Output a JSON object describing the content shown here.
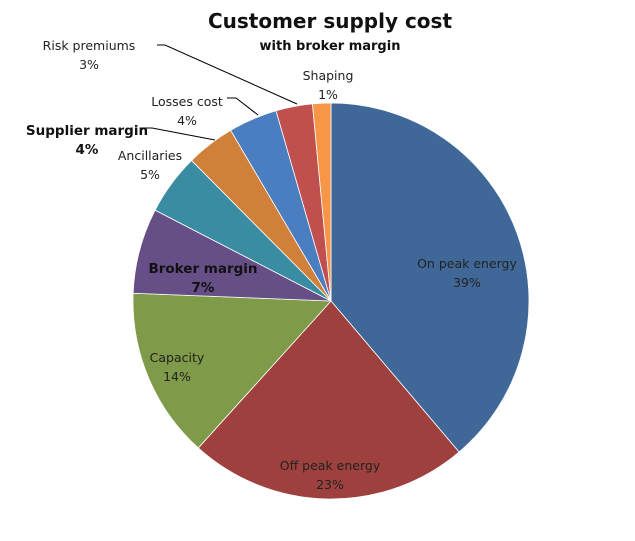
{
  "chart_data": {
    "type": "pie",
    "title": "Customer supply cost",
    "subtitle": "with broker margin",
    "start": "top",
    "direction": "clockwise",
    "slices": [
      {
        "label": "On peak energy",
        "value": 39,
        "pct": "39%",
        "color": "#3F6899",
        "bold": false
      },
      {
        "label": "Off peak energy",
        "value": 23,
        "pct": "23%",
        "color": "#9E413E",
        "bold": false
      },
      {
        "label": "Capacity",
        "value": 14,
        "pct": "14%",
        "color": "#7F9A48",
        "bold": false
      },
      {
        "label": "Broker margin",
        "value": 7,
        "pct": "7%",
        "color": "#664F86",
        "bold": true
      },
      {
        "label": "Ancillaries",
        "value": 5,
        "pct": "5%",
        "color": "#3A8CA3",
        "bold": false
      },
      {
        "label": "Supplier margin",
        "value": 4,
        "pct": "4%",
        "color": "#D1803A",
        "bold": true
      },
      {
        "label": "Losses cost",
        "value": 4,
        "pct": "4%",
        "color": "#4B7EC0",
        "bold": false
      },
      {
        "label": "Risk premiums",
        "value": 3,
        "pct": "3%",
        "color": "#C0504D",
        "bold": false
      },
      {
        "label": "Shaping",
        "value": 1.5,
        "pct": "1%",
        "color": "#F79646",
        "bold": false
      }
    ]
  }
}
